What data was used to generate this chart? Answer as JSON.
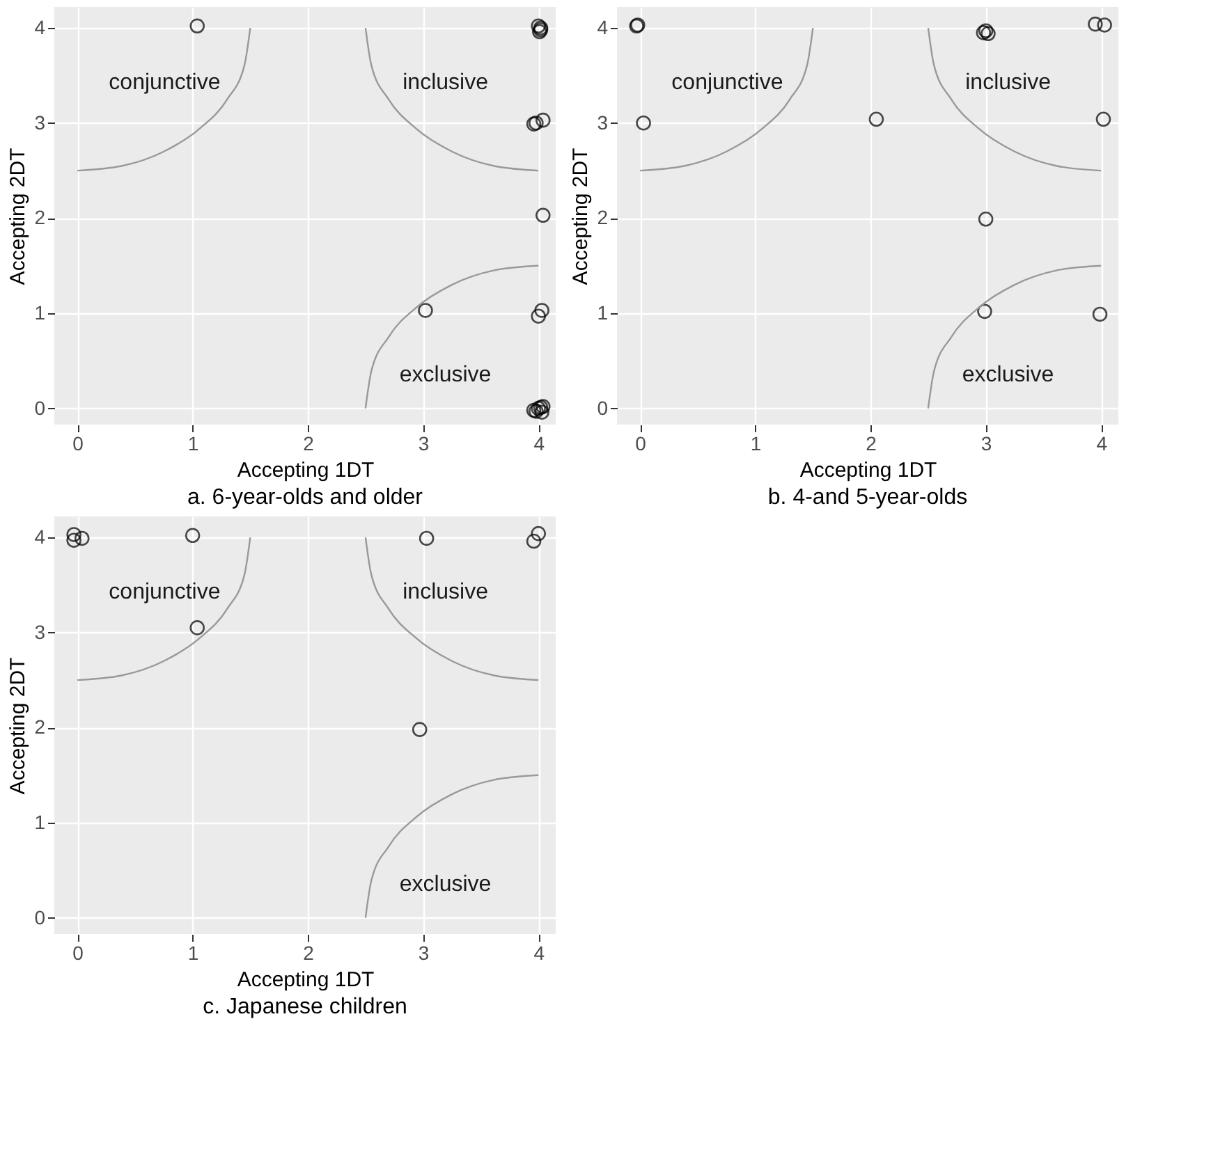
{
  "chart_data": [
    {
      "type": "scatter",
      "title": "a. 6-year-olds and older",
      "xlabel": "Accepting 1DT",
      "ylabel": "Accepting 2DT",
      "xlim": [
        -0.2,
        4.15
      ],
      "ylim": [
        -0.17,
        4.22
      ],
      "xticks": [
        0,
        1,
        2,
        3,
        4
      ],
      "yticks": [
        0,
        1,
        2,
        3,
        4
      ],
      "grid": true,
      "annotations": [
        "conjunctive",
        "inclusive",
        "exclusive"
      ],
      "series": [
        {
          "type": "scatter",
          "marker": "circle",
          "color": "#000000",
          "x": [
            1.04,
            4.0,
            4.02,
            4.01,
            4.02,
            3.96,
            3.98,
            4.04,
            4.04,
            3.02,
            4.0,
            4.03,
            3.96,
            3.98,
            4.02,
            4.04,
            4.03,
            4.0
          ],
          "values": [
            4.02,
            4.02,
            3.98,
            3.96,
            4.0,
            2.99,
            3.0,
            3.03,
            2.03,
            1.03,
            0.97,
            1.03,
            -0.02,
            -0.03,
            0.01,
            0.02,
            -0.04,
            0.0
          ]
        },
        {
          "type": "line",
          "marker": "none",
          "line_style": "solid",
          "color": "#999999",
          "x": [
            0,
            0.39,
            0.75,
            1.06,
            1.3,
            1.45,
            1.5
          ],
          "values": [
            2.5,
            2.55,
            2.7,
            2.94,
            3.25,
            3.61,
            4
          ]
        },
        {
          "type": "line",
          "marker": "none",
          "line_style": "solid",
          "color": "#999999",
          "x": [
            2.5,
            2.55,
            2.7,
            2.94,
            3.25,
            3.61,
            4
          ],
          "values": [
            4,
            3.61,
            3.25,
            2.94,
            2.7,
            2.55,
            2.5
          ]
        },
        {
          "type": "line",
          "marker": "none",
          "line_style": "solid",
          "color": "#999999",
          "x": [
            2.5,
            2.55,
            2.7,
            2.94,
            3.25,
            3.61,
            4
          ],
          "values": [
            0,
            0.39,
            0.75,
            1.06,
            1.3,
            1.45,
            1.5
          ]
        }
      ]
    },
    {
      "type": "scatter",
      "title": "b. 4-and 5-year-olds",
      "xlabel": "Accepting 1DT",
      "ylabel": "Accepting 2DT",
      "xlim": [
        -0.2,
        4.15
      ],
      "ylim": [
        -0.17,
        4.22
      ],
      "xticks": [
        0,
        1,
        2,
        3,
        4
      ],
      "yticks": [
        0,
        1,
        2,
        3,
        4
      ],
      "grid": true,
      "annotations": [
        "conjunctive",
        "inclusive",
        "exclusive"
      ],
      "series": [
        {
          "type": "scatter",
          "marker": "circle",
          "color": "#000000",
          "x": [
            -0.03,
            -0.02,
            0.03,
            2.05,
            2.98,
            3.0,
            3.02,
            3.95,
            4.03,
            4.02,
            3.0,
            2.99,
            3.99
          ],
          "values": [
            4.02,
            4.03,
            3.0,
            3.04,
            3.95,
            3.97,
            3.94,
            4.04,
            4.03,
            3.04,
            1.99,
            1.02,
            0.99
          ]
        },
        {
          "type": "line",
          "marker": "none",
          "line_style": "solid",
          "color": "#999999",
          "x": [
            0,
            0.39,
            0.75,
            1.06,
            1.3,
            1.45,
            1.5
          ],
          "values": [
            2.5,
            2.55,
            2.7,
            2.94,
            3.25,
            3.61,
            4
          ]
        },
        {
          "type": "line",
          "marker": "none",
          "line_style": "solid",
          "color": "#999999",
          "x": [
            2.5,
            2.55,
            2.7,
            2.94,
            3.25,
            3.61,
            4
          ],
          "values": [
            4,
            3.61,
            3.25,
            2.94,
            2.7,
            2.55,
            2.5
          ]
        },
        {
          "type": "line",
          "marker": "none",
          "line_style": "solid",
          "color": "#999999",
          "x": [
            2.5,
            2.55,
            2.7,
            2.94,
            3.25,
            3.61,
            4
          ],
          "values": [
            0,
            0.39,
            0.75,
            1.06,
            1.3,
            1.45,
            1.5
          ]
        }
      ]
    },
    {
      "type": "scatter",
      "title": "c. Japanese children",
      "xlabel": "Accepting 1DT",
      "ylabel": "Accepting 2DT",
      "xlim": [
        -0.2,
        4.15
      ],
      "ylim": [
        -0.17,
        4.22
      ],
      "xticks": [
        0,
        1,
        2,
        3,
        4
      ],
      "yticks": [
        0,
        1,
        2,
        3,
        4
      ],
      "grid": true,
      "annotations": [
        "conjunctive",
        "inclusive",
        "exclusive"
      ],
      "series": [
        {
          "type": "scatter",
          "marker": "circle",
          "color": "#000000",
          "x": [
            -0.03,
            -0.03,
            0.04,
            1.0,
            1.04,
            3.03,
            2.97,
            3.96,
            4.0
          ],
          "values": [
            4.03,
            3.97,
            3.99,
            4.02,
            3.05,
            3.99,
            1.98,
            3.96,
            4.04
          ]
        },
        {
          "type": "line",
          "marker": "none",
          "line_style": "solid",
          "color": "#999999",
          "x": [
            0,
            0.39,
            0.75,
            1.06,
            1.3,
            1.45,
            1.5
          ],
          "values": [
            2.5,
            2.55,
            2.7,
            2.94,
            3.25,
            3.61,
            4
          ]
        },
        {
          "type": "line",
          "marker": "none",
          "line_style": "solid",
          "color": "#999999",
          "x": [
            2.5,
            2.55,
            2.7,
            2.94,
            3.25,
            3.61,
            4
          ],
          "values": [
            4,
            3.61,
            3.25,
            2.94,
            2.7,
            2.55,
            2.5
          ]
        },
        {
          "type": "line",
          "marker": "none",
          "line_style": "solid",
          "color": "#999999",
          "x": [
            2.5,
            2.55,
            2.7,
            2.94,
            3.25,
            3.61,
            4
          ],
          "values": [
            0,
            0.39,
            0.75,
            1.06,
            1.3,
            1.45,
            1.5
          ]
        }
      ]
    }
  ]
}
